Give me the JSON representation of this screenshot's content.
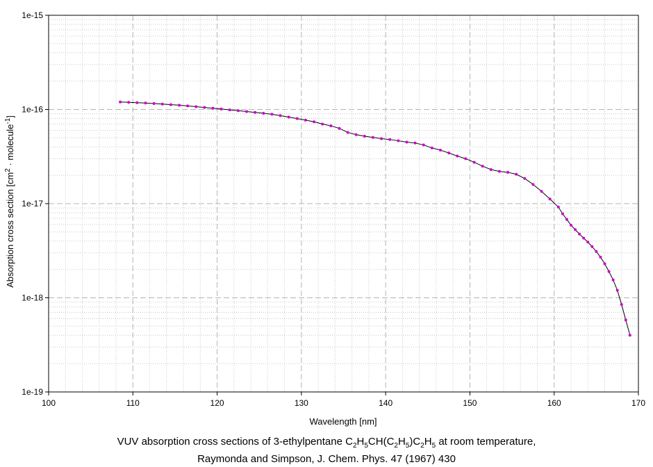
{
  "chart_data": {
    "type": "line",
    "title_line1_parts": {
      "prefix": "VUV absorption cross sections of 3-ethylpentane C",
      "s1": "2",
      "t1": "H",
      "s2": "5",
      "t2": "CH(C",
      "s3": "2",
      "t3": "H",
      "s4": "5",
      "t4": ")C",
      "s5": "2",
      "t5": "H",
      "s6": "5",
      "suffix": " at room temperature,"
    },
    "title_line2": "Raymonda and Simpson, J. Chem. Phys. 47 (1967) 430",
    "xlabel": "Wavelength [nm]",
    "ylabel_parts": {
      "pre": "Absorption cross section [cm",
      "sup1": "2",
      "mid": " · molecule",
      "sup2": "-1",
      "post": "]"
    },
    "xlim": [
      100,
      170
    ],
    "ylim": [
      1e-19,
      1e-15
    ],
    "yscale": "log",
    "grid": true,
    "x_ticks": [
      "100",
      "110",
      "120",
      "130",
      "140",
      "150",
      "160",
      "170"
    ],
    "y_ticks": [
      "1e-15",
      "1e-16",
      "1e-17",
      "1e-18",
      "1e-19"
    ],
    "series": [
      {
        "color": "#cc00cc",
        "line_color": "#000000",
        "points": [
          [
            108.5,
            1.2e-16
          ],
          [
            109.5,
            1.19e-16
          ],
          [
            110.5,
            1.18e-16
          ],
          [
            111.5,
            1.17e-16
          ],
          [
            112.5,
            1.155e-16
          ],
          [
            113.5,
            1.14e-16
          ],
          [
            114.5,
            1.125e-16
          ],
          [
            115.5,
            1.11e-16
          ],
          [
            116.5,
            1.09e-16
          ],
          [
            117.5,
            1.07e-16
          ],
          [
            118.5,
            1.05e-16
          ],
          [
            119.5,
            1.03e-16
          ],
          [
            120.5,
            1.01e-16
          ],
          [
            121.5,
            9.9e-17
          ],
          [
            122.5,
            9.7e-17
          ],
          [
            123.5,
            9.5e-17
          ],
          [
            124.5,
            9.3e-17
          ],
          [
            125.5,
            9.1e-17
          ],
          [
            126.5,
            8.9e-17
          ],
          [
            127.5,
            8.6e-17
          ],
          [
            128.5,
            8.3e-17
          ],
          [
            129.5,
            8e-17
          ],
          [
            130.5,
            7.7e-17
          ],
          [
            131.5,
            7.4e-17
          ],
          [
            132.5,
            7e-17
          ],
          [
            133.5,
            6.7e-17
          ],
          [
            134.5,
            6.3e-17
          ],
          [
            135.5,
            5.7e-17
          ],
          [
            136.5,
            5.4e-17
          ],
          [
            137.5,
            5.2e-17
          ],
          [
            138.5,
            5.05e-17
          ],
          [
            139.5,
            4.9e-17
          ],
          [
            140.5,
            4.8e-17
          ],
          [
            141.5,
            4.65e-17
          ],
          [
            142.5,
            4.5e-17
          ],
          [
            143.5,
            4.4e-17
          ],
          [
            144.5,
            4.2e-17
          ],
          [
            145.5,
            3.9e-17
          ],
          [
            146.5,
            3.7e-17
          ],
          [
            147.5,
            3.45e-17
          ],
          [
            148.5,
            3.2e-17
          ],
          [
            149.5,
            3e-17
          ],
          [
            150.5,
            2.75e-17
          ],
          [
            151.5,
            2.5e-17
          ],
          [
            152.5,
            2.3e-17
          ],
          [
            153.5,
            2.2e-17
          ],
          [
            154.5,
            2.15e-17
          ],
          [
            155.5,
            2.05e-17
          ],
          [
            156.5,
            1.85e-17
          ],
          [
            157.5,
            1.6e-17
          ],
          [
            158.5,
            1.35e-17
          ],
          [
            159.5,
            1.12e-17
          ],
          [
            160.5,
            9.2e-18
          ],
          [
            161.0,
            7.8e-18
          ],
          [
            161.5,
            6.8e-18
          ],
          [
            162.0,
            5.9e-18
          ],
          [
            162.5,
            5.3e-18
          ],
          [
            163.0,
            4.75e-18
          ],
          [
            163.5,
            4.3e-18
          ],
          [
            164.0,
            3.9e-18
          ],
          [
            164.5,
            3.5e-18
          ],
          [
            165.0,
            3.1e-18
          ],
          [
            165.5,
            2.7e-18
          ],
          [
            166.0,
            2.3e-18
          ],
          [
            166.5,
            1.9e-18
          ],
          [
            167.0,
            1.55e-18
          ],
          [
            167.5,
            1.2e-18
          ],
          [
            168.0,
            8.5e-19
          ],
          [
            168.5,
            5.8e-19
          ],
          [
            169.0,
            4e-19
          ]
        ]
      }
    ]
  }
}
